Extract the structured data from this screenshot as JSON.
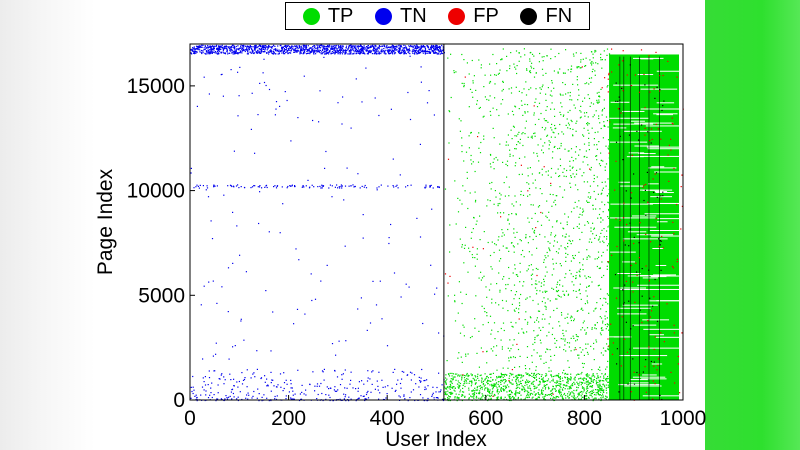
{
  "chart_data": {
    "type": "scatter",
    "title": "",
    "xlabel": "User Index",
    "ylabel": "Page Index",
    "xlim": [
      0,
      1000
    ],
    "ylim": [
      0,
      17000
    ],
    "xticks": [
      "0",
      "200",
      "400",
      "600",
      "800",
      "1000"
    ],
    "yticks": [
      "0",
      "5000",
      "10000",
      "15000"
    ],
    "xtick_values": [
      0,
      200,
      400,
      600,
      800,
      1000
    ],
    "ytick_values": [
      0,
      5000,
      10000,
      15000
    ],
    "divider_x": 515,
    "legend_placement": "top",
    "grid": false,
    "series": [
      {
        "name": "TP",
        "color": "#00dd00"
      },
      {
        "name": "TN",
        "color": "#0000ee"
      },
      {
        "name": "FP",
        "color": "#ee0000"
      },
      {
        "name": "FN",
        "color": "#000000"
      }
    ],
    "regions": [
      {
        "series": "TN",
        "description_x": [
          0,
          515
        ],
        "dense_band_y": [
          16600,
          16950
        ],
        "sparse_band_y": [
          10150,
          10300
        ],
        "low_band_y": [
          0,
          1400
        ]
      },
      {
        "series": "TP",
        "x": [
          515,
          1000
        ],
        "dense_block_x": [
          845,
          1000
        ],
        "dense_block_y": [
          0,
          16700
        ],
        "low_band_y": [
          0,
          1300
        ]
      },
      {
        "series": "FP",
        "x": [
          845,
          1000
        ],
        "y": [
          0,
          17000
        ]
      },
      {
        "series": "FN",
        "x": [
          860,
          960
        ],
        "y": [
          0,
          16700
        ]
      }
    ]
  }
}
